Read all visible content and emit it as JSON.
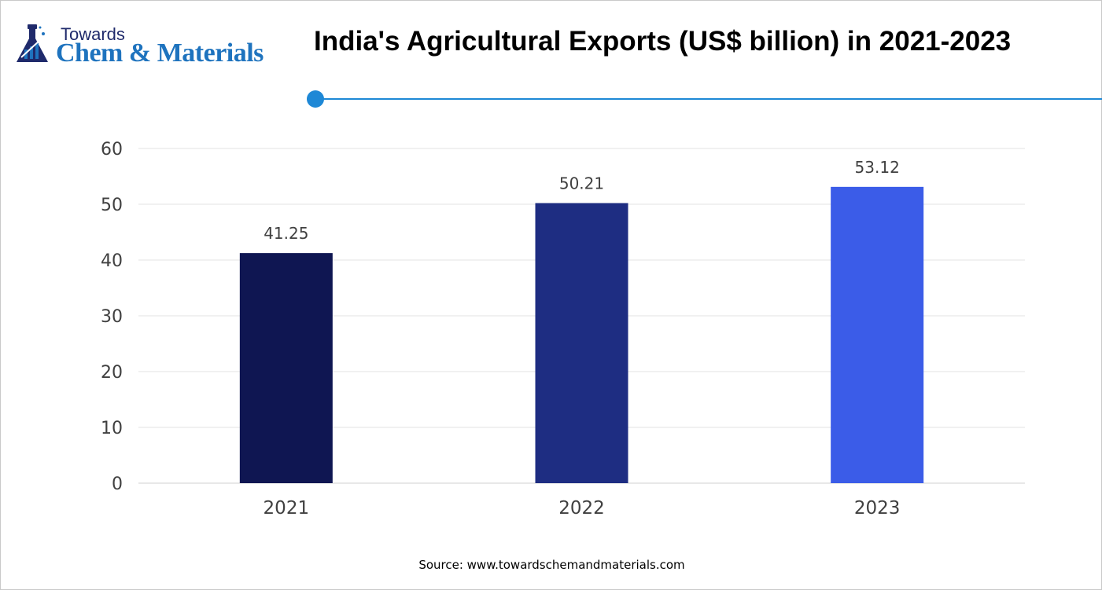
{
  "logo": {
    "line1": "Towards",
    "line2": "Chem & Materials"
  },
  "source": "Source: www.towardschemandmaterials.com",
  "colors": {
    "accent": "#1e88d6",
    "bar_2021": "#0f1652",
    "bar_2022": "#1e2d82",
    "bar_2023": "#3b5ce8"
  },
  "chart_data": {
    "type": "bar",
    "title": "India's Agricultural Exports (US$ billion) in 2021-2023",
    "categories": [
      "2021",
      "2022",
      "2023"
    ],
    "values": [
      41.25,
      50.21,
      53.12
    ],
    "data_labels": [
      "41.25",
      "50.21",
      "53.12"
    ],
    "bar_colors": [
      "#0f1652",
      "#1e2d82",
      "#3b5ce8"
    ],
    "ylim": [
      0,
      60
    ],
    "yticks": [
      0,
      10,
      20,
      30,
      40,
      50,
      60
    ],
    "grid": true,
    "legend": "none"
  }
}
